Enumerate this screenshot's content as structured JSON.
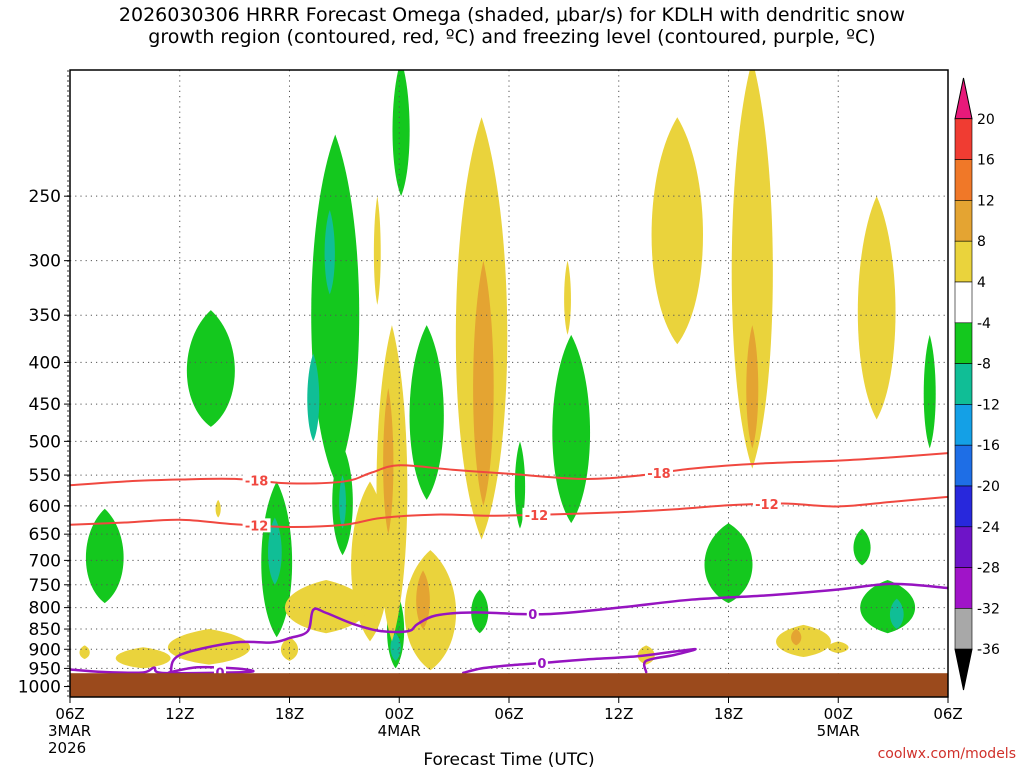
{
  "title_line1": "2026030306 HRRR Forecast Omega (shaded, μbar/s) for KDLH with dendritic snow",
  "title_line2": "growth region (contoured, red, ºC) and freezing level (contoured, purple, ºC)",
  "credit": "coolwx.com/models",
  "chart_data": {
    "type": "heatmap",
    "xlabel": "Forecast Time (UTC)",
    "ylabel": "",
    "x_range_hours": [
      0,
      48
    ],
    "y_range_hpa": [
      1030,
      175
    ],
    "y_scale": "log-pressure",
    "x_ticks": [
      {
        "hour": 0,
        "lines": [
          "06Z",
          "3MAR",
          "2026"
        ]
      },
      {
        "hour": 6,
        "lines": [
          "12Z"
        ]
      },
      {
        "hour": 12,
        "lines": [
          "18Z"
        ]
      },
      {
        "hour": 18,
        "lines": [
          "00Z",
          "4MAR"
        ]
      },
      {
        "hour": 24,
        "lines": [
          "06Z"
        ]
      },
      {
        "hour": 30,
        "lines": [
          "12Z"
        ]
      },
      {
        "hour": 36,
        "lines": [
          "18Z"
        ]
      },
      {
        "hour": 42,
        "lines": [
          "00Z",
          "5MAR"
        ]
      },
      {
        "hour": 48,
        "lines": [
          "06Z"
        ]
      }
    ],
    "y_ticks": [
      250,
      300,
      350,
      400,
      450,
      500,
      550,
      600,
      650,
      700,
      750,
      800,
      850,
      900,
      950,
      1000
    ],
    "grid": "dotted",
    "ground_top_hpa": 963,
    "colorbar": {
      "labels": [
        "20",
        "16",
        "12",
        "8",
        "4",
        "-4",
        "-8",
        "-12",
        "-16",
        "-20",
        "-24",
        "-28",
        "-32",
        "-36"
      ],
      "colors": [
        "#e8197a",
        "#f03c32",
        "#f07828",
        "#e4a432",
        "#ead33c",
        "#ffffff",
        "#14c81e",
        "#10be96",
        "#14a0e6",
        "#1e6ee6",
        "#2828dc",
        "#6e14c8",
        "#a014c8",
        "#a8a8a8",
        "#000000"
      ]
    },
    "omega_regions": [
      {
        "level": -4,
        "hour": 1.9,
        "p_top": 605,
        "p_bot": 790,
        "halfwidth": 1.1
      },
      {
        "level": -4,
        "hour": 7.7,
        "p_top": 345,
        "p_bot": 480,
        "halfwidth": 1.4
      },
      {
        "level": -4,
        "hour": 14.5,
        "p_top": 210,
        "p_bot": 560,
        "halfwidth": 1.4
      },
      {
        "level": -8,
        "hour": 14.2,
        "p_top": 260,
        "p_bot": 330,
        "halfwidth": 0.3
      },
      {
        "level": -8,
        "hour": 13.3,
        "p_top": 390,
        "p_bot": 500,
        "halfwidth": 0.35
      },
      {
        "level": -4,
        "hour": 11.3,
        "p_top": 560,
        "p_bot": 870,
        "halfwidth": 0.9
      },
      {
        "level": -8,
        "hour": 11.2,
        "p_top": 620,
        "p_bot": 750,
        "halfwidth": 0.4
      },
      {
        "level": -4,
        "hour": 14.9,
        "p_top": 505,
        "p_bot": 690,
        "halfwidth": 0.6
      },
      {
        "level": -8,
        "hour": 14.9,
        "p_top": 550,
        "p_bot": 640,
        "halfwidth": 0.2
      },
      {
        "level": -4,
        "hour": 19.5,
        "p_top": 360,
        "p_bot": 590,
        "halfwidth": 1.0
      },
      {
        "level": -4,
        "hour": 18.1,
        "p_top": 170,
        "p_bot": 250,
        "halfwidth": 0.5
      },
      {
        "level": -4,
        "hour": 17.8,
        "p_top": 760,
        "p_bot": 950,
        "halfwidth": 0.5
      },
      {
        "level": -8,
        "hour": 17.8,
        "p_top": 860,
        "p_bot": 930,
        "halfwidth": 0.3
      },
      {
        "level": -4,
        "hour": 24.6,
        "p_top": 500,
        "p_bot": 640,
        "halfwidth": 0.3
      },
      {
        "level": -4,
        "hour": 22.4,
        "p_top": 760,
        "p_bot": 860,
        "halfwidth": 0.5
      },
      {
        "level": -4,
        "hour": 27.4,
        "p_top": 370,
        "p_bot": 630,
        "halfwidth": 1.1
      },
      {
        "level": -4,
        "hour": 36.0,
        "p_top": 630,
        "p_bot": 790,
        "halfwidth": 1.4
      },
      {
        "level": -4,
        "hour": 43.3,
        "p_top": 640,
        "p_bot": 710,
        "halfwidth": 0.5
      },
      {
        "level": -4,
        "hour": 44.7,
        "p_top": 740,
        "p_bot": 860,
        "halfwidth": 1.6
      },
      {
        "level": -8,
        "hour": 45.2,
        "p_top": 780,
        "p_bot": 850,
        "halfwidth": 0.4
      },
      {
        "level": -4,
        "hour": 47.0,
        "p_top": 370,
        "p_bot": 510,
        "halfwidth": 0.35
      },
      {
        "level": 4,
        "hour": 22.5,
        "p_top": 200,
        "p_bot": 660,
        "halfwidth": 1.5
      },
      {
        "level": 8,
        "hour": 22.6,
        "p_top": 300,
        "p_bot": 600,
        "halfwidth": 0.6
      },
      {
        "level": 4,
        "hour": 33.2,
        "p_top": 200,
        "p_bot": 380,
        "halfwidth": 1.5
      },
      {
        "level": 4,
        "hour": 37.3,
        "p_top": 170,
        "p_bot": 540,
        "halfwidth": 1.2
      },
      {
        "level": 8,
        "hour": 37.3,
        "p_top": 360,
        "p_bot": 510,
        "halfwidth": 0.35
      },
      {
        "level": 4,
        "hour": 44.1,
        "p_top": 250,
        "p_bot": 470,
        "halfwidth": 1.1
      },
      {
        "level": 4,
        "hour": 17.6,
        "p_top": 360,
        "p_bot": 880,
        "halfwidth": 0.9
      },
      {
        "level": 8,
        "hour": 17.4,
        "p_top": 430,
        "p_bot": 650,
        "halfwidth": 0.3
      },
      {
        "level": 4,
        "hour": 16.4,
        "p_top": 560,
        "p_bot": 880,
        "halfwidth": 1.1
      },
      {
        "level": 4,
        "hour": 19.7,
        "p_top": 680,
        "p_bot": 955,
        "halfwidth": 1.5
      },
      {
        "level": 8,
        "hour": 19.3,
        "p_top": 720,
        "p_bot": 850,
        "halfwidth": 0.4
      },
      {
        "level": 4,
        "hour": 14.0,
        "p_top": 740,
        "p_bot": 860,
        "halfwidth": 2.4
      },
      {
        "level": 4,
        "hour": 12.0,
        "p_top": 870,
        "p_bot": 930,
        "halfwidth": 0.5
      },
      {
        "level": 4,
        "hour": 7.6,
        "p_top": 850,
        "p_bot": 940,
        "halfwidth": 2.4
      },
      {
        "level": 4,
        "hour": 4.0,
        "p_top": 895,
        "p_bot": 950,
        "halfwidth": 1.6
      },
      {
        "level": 4,
        "hour": 0.8,
        "p_top": 890,
        "p_bot": 925,
        "halfwidth": 0.3
      },
      {
        "level": 4,
        "hour": 8.1,
        "p_top": 880,
        "p_bot": 930,
        "halfwidth": 0.6
      },
      {
        "level": 4,
        "hour": 16.8,
        "p_top": 250,
        "p_bot": 340,
        "halfwidth": 0.2
      },
      {
        "level": 4,
        "hour": 27.2,
        "p_top": 300,
        "p_bot": 370,
        "halfwidth": 0.2
      },
      {
        "level": 4,
        "hour": 40.1,
        "p_top": 840,
        "p_bot": 920,
        "halfwidth": 1.6
      },
      {
        "level": 8,
        "hour": 39.7,
        "p_top": 850,
        "p_bot": 890,
        "halfwidth": 0.3
      },
      {
        "level": 4,
        "hour": 31.5,
        "p_top": 890,
        "p_bot": 940,
        "halfwidth": 0.5
      },
      {
        "level": 4,
        "hour": 42.0,
        "p_top": 880,
        "p_bot": 910,
        "halfwidth": 0.6
      },
      {
        "level": 4,
        "hour": 8.1,
        "p_top": 590,
        "p_bot": 620,
        "halfwidth": 0.15
      }
    ],
    "contours": [
      {
        "label": "-18",
        "color": "#f04840",
        "width": 2,
        "points": [
          [
            0,
            566
          ],
          [
            3,
            560
          ],
          [
            6,
            557
          ],
          [
            9,
            556
          ],
          [
            12,
            563
          ],
          [
            15,
            560
          ],
          [
            16.5,
            546
          ],
          [
            18,
            535
          ],
          [
            21,
            542
          ],
          [
            24,
            548
          ],
          [
            28,
            556
          ],
          [
            31,
            551
          ],
          [
            34,
            540
          ],
          [
            38,
            532
          ],
          [
            42,
            528
          ],
          [
            45,
            523
          ],
          [
            48,
            517
          ]
        ],
        "label_hours": [
          10.2,
          32.2
        ]
      },
      {
        "label": "-12",
        "color": "#f04840",
        "width": 2,
        "points": [
          [
            0,
            633
          ],
          [
            3,
            629
          ],
          [
            6,
            624
          ],
          [
            9,
            632
          ],
          [
            12,
            637
          ],
          [
            15,
            633
          ],
          [
            17,
            621
          ],
          [
            20,
            615
          ],
          [
            23,
            617
          ],
          [
            26,
            615
          ],
          [
            30,
            611
          ],
          [
            33,
            606
          ],
          [
            36,
            599
          ],
          [
            39,
            596
          ],
          [
            42,
            601
          ],
          [
            45,
            593
          ],
          [
            48,
            585
          ]
        ],
        "label_hours": [
          10.2,
          25.5,
          38.1
        ]
      },
      {
        "label": "0",
        "color": "#9614c0",
        "width": 2.5,
        "points": [
          [
            0,
            953
          ],
          [
            2,
            960
          ],
          [
            4,
            961
          ],
          [
            4.6,
            948
          ],
          [
            5.0,
            962
          ],
          [
            8,
            962
          ],
          [
            10,
            958
          ],
          [
            9,
            950
          ],
          [
            7,
            947
          ],
          [
            5.5,
            960
          ],
          [
            5.5,
            960
          ],
          [
            6,
            915
          ],
          [
            9,
            883
          ],
          [
            11,
            883
          ],
          [
            12,
            872
          ],
          [
            13,
            855
          ],
          [
            13.3,
            805
          ],
          [
            14,
            812
          ],
          [
            15.5,
            838
          ],
          [
            17,
            855
          ],
          [
            18.5,
            855
          ],
          [
            19,
            838
          ],
          [
            20,
            818
          ],
          [
            22,
            811
          ],
          [
            26,
            815
          ],
          [
            30,
            800
          ],
          [
            34,
            782
          ],
          [
            38,
            773
          ],
          [
            42,
            760
          ],
          [
            45,
            748
          ],
          [
            48,
            757
          ]
        ],
        "label_hours": [
          8.2,
          25.3
        ]
      },
      {
        "label": "0",
        "color": "#9614c0",
        "width": 2.5,
        "points": [
          [
            21.5,
            962
          ],
          [
            22.5,
            950
          ],
          [
            24,
            942
          ],
          [
            26,
            935
          ],
          [
            28,
            927
          ],
          [
            31,
            918
          ],
          [
            33,
            906
          ],
          [
            34.2,
            900
          ],
          [
            33,
            915
          ],
          [
            31.5,
            930
          ],
          [
            31.5,
            960
          ]
        ],
        "label_hours": [
          25.8
        ]
      }
    ]
  }
}
